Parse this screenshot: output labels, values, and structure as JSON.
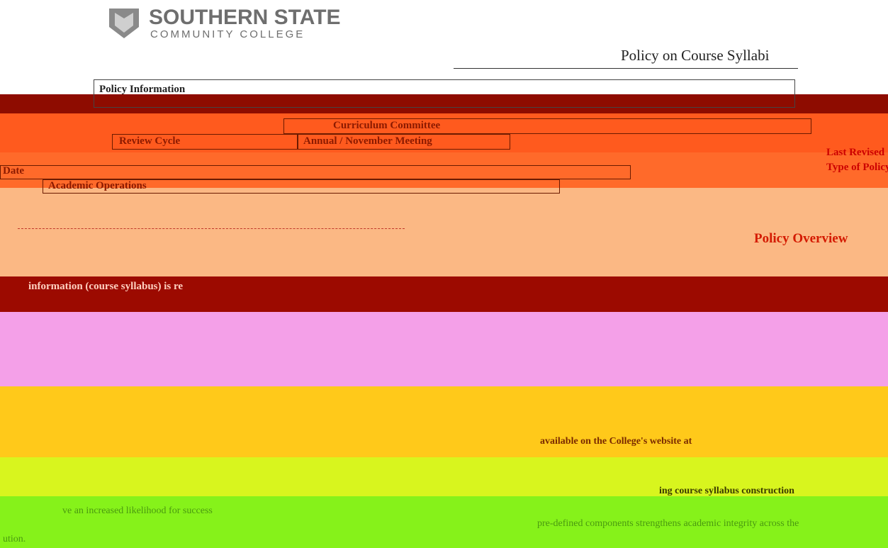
{
  "header": {
    "logo_name": "SOUTHERN STATE",
    "logo_subtitle": "COMMUNITY COLLEGE",
    "title": "Policy on Course Syllabi"
  },
  "policy_information": {
    "heading": "Policy Information",
    "rows": [
      [
        "Curriculum Committee"
      ],
      [
        "Review Cycle",
        "Annual / November Meeting"
      ],
      [
        "Last Revised"
      ],
      [
        "Date"
      ],
      [
        "Type of Policy"
      ],
      [
        "Academic Operations"
      ]
    ]
  },
  "overview": {
    "heading": "Policy Overview",
    "fragments": [
      "information (course syllabus) is re",
      "available on the College's website at",
      "ing course syllabus construction",
      "ve an increased likelihood for success",
      "pre-defined components strengthens academic integrity across the",
      "ution."
    ]
  }
}
